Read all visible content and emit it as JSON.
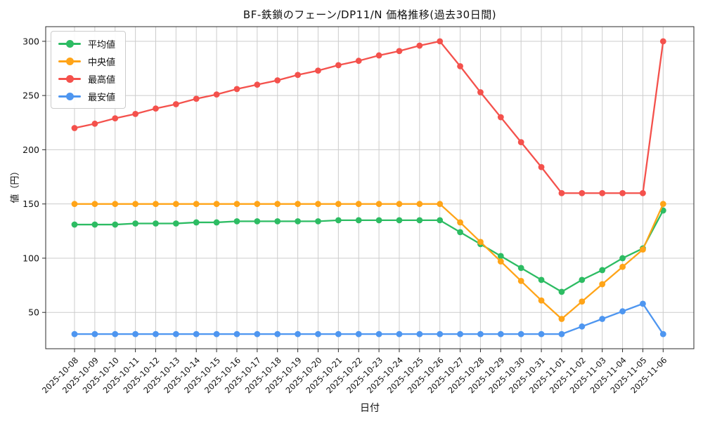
{
  "chart_data": {
    "type": "line",
    "title": "BF-鉄鎖のフェーン/DP11/N 価格推移(過去30日間)",
    "xlabel": "日付",
    "ylabel": "値（円）",
    "grid": true,
    "legend_position": "upper left",
    "ylim": [
      16.5,
      313.5
    ],
    "yticks": [
      50,
      100,
      150,
      200,
      250,
      300
    ],
    "categories": [
      "2025-10-08",
      "2025-10-09",
      "2025-10-10",
      "2025-10-11",
      "2025-10-12",
      "2025-10-13",
      "2025-10-14",
      "2025-10-15",
      "2025-10-16",
      "2025-10-17",
      "2025-10-18",
      "2025-10-19",
      "2025-10-20",
      "2025-10-21",
      "2025-10-22",
      "2025-10-23",
      "2025-10-24",
      "2025-10-25",
      "2025-10-26",
      "2025-10-27",
      "2025-10-28",
      "2025-10-29",
      "2025-10-30",
      "2025-10-31",
      "2025-11-01",
      "2025-11-02",
      "2025-11-03",
      "2025-11-04",
      "2025-11-05",
      "2025-11-06"
    ],
    "series": [
      {
        "key": "mean",
        "name": "平均値",
        "color": "#2dbc63",
        "values": [
          131,
          131,
          131,
          132,
          132,
          132,
          133,
          133,
          134,
          134,
          134,
          134,
          134,
          135,
          135,
          135,
          135,
          135,
          135,
          124,
          113,
          102,
          91,
          80,
          69,
          80,
          89,
          100,
          109,
          144
        ]
      },
      {
        "key": "median",
        "name": "中央値",
        "color": "#ffa418",
        "values": [
          150,
          150,
          150,
          150,
          150,
          150,
          150,
          150,
          150,
          150,
          150,
          150,
          150,
          150,
          150,
          150,
          150,
          150,
          150,
          133,
          115,
          97,
          79,
          61,
          44,
          60,
          76,
          92,
          108,
          150
        ]
      },
      {
        "key": "max",
        "name": "最高値",
        "color": "#f4514c",
        "values": [
          220,
          224,
          229,
          233,
          238,
          242,
          247,
          251,
          256,
          260,
          264,
          269,
          273,
          278,
          282,
          287,
          291,
          296,
          300,
          277,
          253,
          230,
          207,
          184,
          160,
          160,
          160,
          160,
          160,
          300
        ]
      },
      {
        "key": "min",
        "name": "最安値",
        "color": "#4e96f0",
        "values": [
          30,
          30,
          30,
          30,
          30,
          30,
          30,
          30,
          30,
          30,
          30,
          30,
          30,
          30,
          30,
          30,
          30,
          30,
          30,
          30,
          30,
          30,
          30,
          30,
          30,
          37,
          44,
          51,
          58,
          30
        ]
      }
    ]
  },
  "style": {
    "grid_color": "#cccccc",
    "spine_color": "#2b2b2b",
    "tick_label_color": "#111111",
    "background": "#ffffff"
  }
}
